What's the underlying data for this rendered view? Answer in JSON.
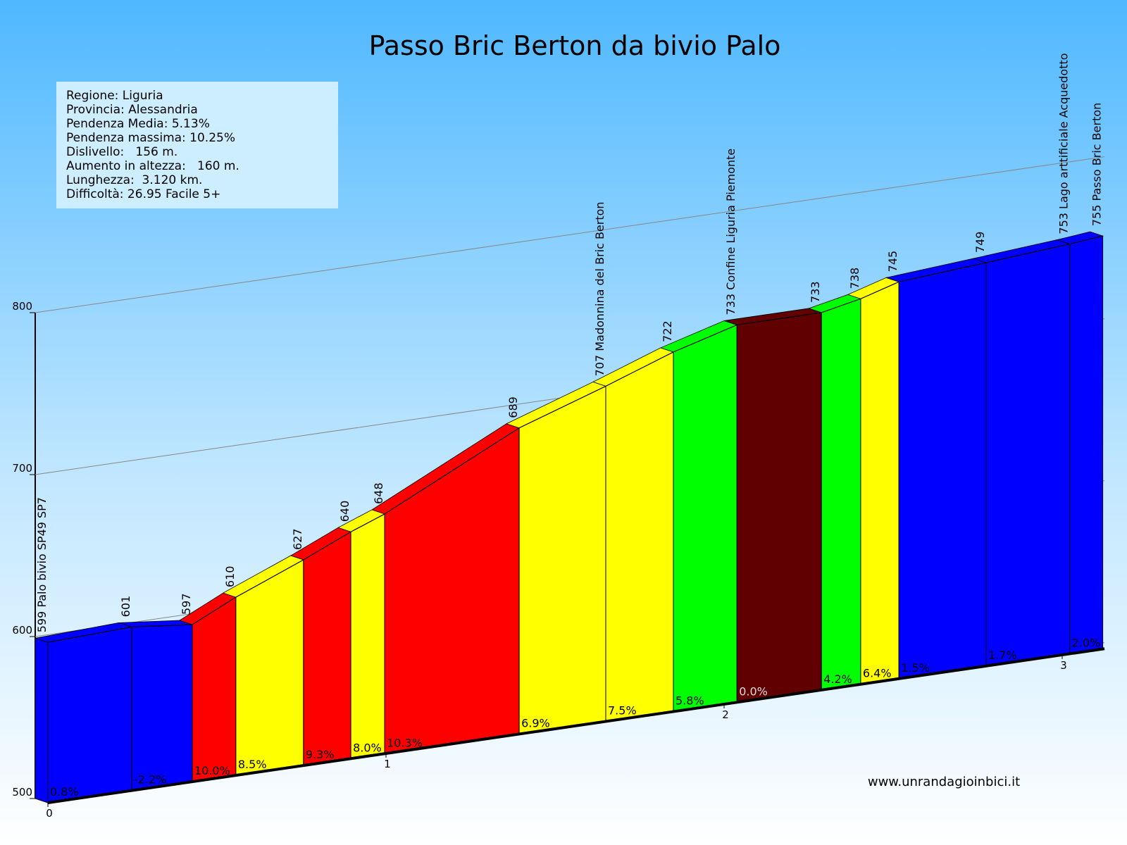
{
  "chart_data": {
    "type": "area",
    "title": "Passo Bric Berton da bivio Palo",
    "info_box": [
      "Regione: Liguria",
      "Provincia: Alessandria",
      "Pendenza Media: 5.13%",
      "Pendenza massima: 10.25%",
      "Dislivello:   156 m.",
      "Aumento in altezza:   160 m.",
      "Lunghezza:  3.120 km.",
      "Difficoltà: 26.95 Facile 5+"
    ],
    "source": "www.unrandagioinbici.it",
    "x": [
      0,
      0.248,
      0.427,
      0.556,
      0.756,
      0.896,
      0.996,
      1.394,
      1.65,
      1.85,
      2.038,
      2.288,
      2.404,
      2.517,
      2.775,
      3.022,
      3.12
    ],
    "series": [
      {
        "values": [
          599,
          601,
          597,
          610,
          627,
          640,
          648,
          689,
          707,
          722,
          733,
          733,
          738,
          745,
          749,
          753,
          755
        ],
        "value_labels": [
          "599 Palo bivio SP49 SP7",
          "601",
          "597",
          "610",
          "627",
          "640",
          "648",
          "689",
          "707 Madonnina del Bric Berton",
          "722",
          "733 Confine Liguria Piemonte",
          "733",
          "738",
          "745",
          "749",
          "753 Lago arttificiale Acquedotto",
          "755 Passo Bric Berton"
        ]
      }
    ],
    "gradients": [
      0.8,
      -2.2,
      10.0,
      8.5,
      9.3,
      8.0,
      10.3,
      6.9,
      7.5,
      5.8,
      0.0,
      4.2,
      6.4,
      1.5,
      1.7,
      2.0
    ],
    "gradient_labels": [
      "0.8%",
      "-2.2%",
      "10.0%",
      "8.5%",
      "9.3%",
      "8.0%",
      "10.3%",
      "6.9%",
      "7.5%",
      "5.8%",
      "0.0%",
      "4.2%",
      "6.4%",
      "1.5%",
      "1.7%",
      "2.0%"
    ],
    "segment_colors": [
      "#0000ff",
      "#0000ff",
      "#ff0000",
      "#ffff00",
      "#ff0000",
      "#ffff00",
      "#ff0000",
      "#ffff00",
      "#ffff00",
      "#00ff00",
      "#600000",
      "#00ff00",
      "#ffff00",
      "#0000ff",
      "#0000ff",
      "#0000ff"
    ],
    "xlim": [
      0,
      3.12
    ],
    "xticks": [
      0,
      1,
      2,
      3
    ],
    "ylim": [
      500,
      800
    ],
    "yticks": [
      500,
      600,
      700,
      800
    ],
    "grid": true
  }
}
